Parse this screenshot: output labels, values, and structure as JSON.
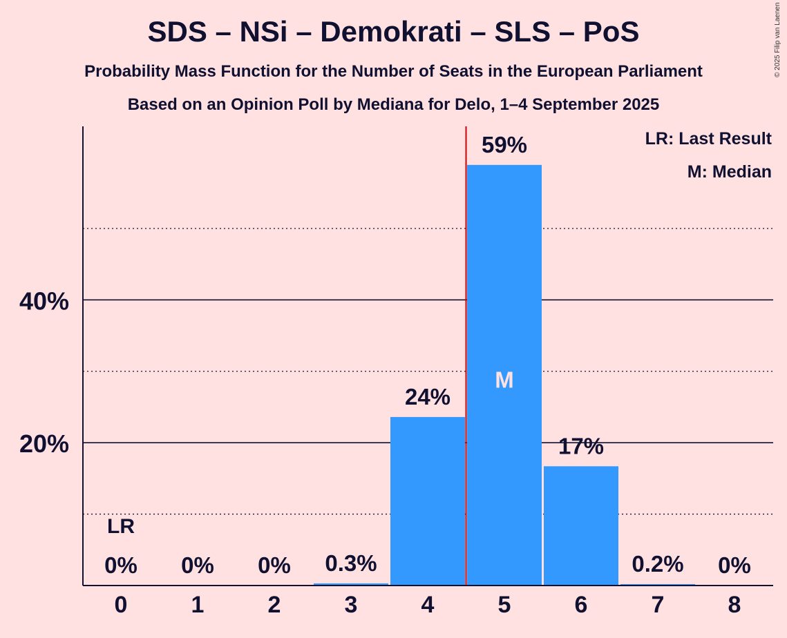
{
  "title": "SDS – NSi – Demokrati – SLS – PoS",
  "subtitle": "Probability Mass Function for the Number of Seats in the European Parliament",
  "subtitle2": "Based on an Opinion Poll by Mediana for Delo, 1–4 September 2025",
  "copyright": "© 2025 Filip van Laenen",
  "legend": {
    "last_result": "LR: Last Result",
    "median": "M: Median"
  },
  "colors": {
    "background": "#FFE1E1",
    "bar": "#3399FF",
    "median_line": "#CC0000",
    "text": "#101030"
  },
  "chart_data": {
    "type": "bar",
    "categories": [
      "0",
      "1",
      "2",
      "3",
      "4",
      "5",
      "6",
      "7",
      "8"
    ],
    "values": [
      0,
      0,
      0,
      0.3,
      23.6,
      58.9,
      16.7,
      0.2,
      0
    ],
    "data_labels": [
      "0%",
      "0%",
      "0%",
      "0.3%",
      "24%",
      "59%",
      "17%",
      "0.2%",
      "0%"
    ],
    "ylim": [
      0,
      64.3
    ],
    "yticks": [
      20,
      40
    ],
    "ytick_labels": [
      "20%",
      "40%"
    ],
    "minor_gridlines": [
      10,
      30,
      50
    ],
    "last_result_seat": 0,
    "last_result_label": "LR",
    "median_seat": 5,
    "median_label": "M",
    "legend_position": "top-right"
  }
}
